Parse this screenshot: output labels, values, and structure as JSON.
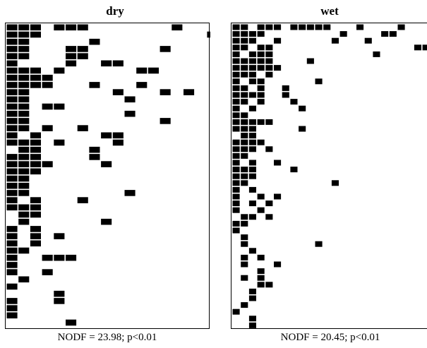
{
  "panels": [
    {
      "id": "dry",
      "title": "dry",
      "stat": "NODF = 23.98; p<0.01",
      "cells": [
        [
          0,
          0
        ],
        [
          1,
          0
        ],
        [
          2,
          0
        ],
        [
          4,
          0
        ],
        [
          5,
          0
        ],
        [
          6,
          0
        ],
        [
          14,
          0
        ],
        [
          0,
          1
        ],
        [
          1,
          1
        ],
        [
          2,
          1
        ],
        [
          17,
          1
        ],
        [
          0,
          2
        ],
        [
          1,
          2
        ],
        [
          7,
          2
        ],
        [
          0,
          3
        ],
        [
          1,
          3
        ],
        [
          5,
          3
        ],
        [
          6,
          3
        ],
        [
          13,
          3
        ],
        [
          0,
          4
        ],
        [
          1,
          4
        ],
        [
          5,
          4
        ],
        [
          6,
          4
        ],
        [
          0,
          5
        ],
        [
          5,
          5
        ],
        [
          8,
          5
        ],
        [
          9,
          5
        ],
        [
          0,
          6
        ],
        [
          1,
          6
        ],
        [
          2,
          6
        ],
        [
          4,
          6
        ],
        [
          11,
          6
        ],
        [
          12,
          6
        ],
        [
          0,
          7
        ],
        [
          1,
          7
        ],
        [
          2,
          7
        ],
        [
          3,
          7
        ],
        [
          0,
          8
        ],
        [
          1,
          8
        ],
        [
          2,
          8
        ],
        [
          3,
          8
        ],
        [
          7,
          8
        ],
        [
          11,
          8
        ],
        [
          0,
          9
        ],
        [
          1,
          9
        ],
        [
          9,
          9
        ],
        [
          13,
          9
        ],
        [
          15,
          9
        ],
        [
          0,
          10
        ],
        [
          1,
          10
        ],
        [
          10,
          10
        ],
        [
          0,
          11
        ],
        [
          1,
          11
        ],
        [
          3,
          11
        ],
        [
          4,
          11
        ],
        [
          0,
          12
        ],
        [
          1,
          12
        ],
        [
          10,
          12
        ],
        [
          0,
          13
        ],
        [
          1,
          13
        ],
        [
          13,
          13
        ],
        [
          0,
          14
        ],
        [
          1,
          14
        ],
        [
          3,
          14
        ],
        [
          6,
          14
        ],
        [
          0,
          15
        ],
        [
          2,
          15
        ],
        [
          8,
          15
        ],
        [
          9,
          15
        ],
        [
          0,
          16
        ],
        [
          1,
          16
        ],
        [
          2,
          16
        ],
        [
          4,
          16
        ],
        [
          9,
          16
        ],
        [
          1,
          17
        ],
        [
          2,
          17
        ],
        [
          7,
          17
        ],
        [
          0,
          18
        ],
        [
          1,
          18
        ],
        [
          2,
          18
        ],
        [
          7,
          18
        ],
        [
          0,
          19
        ],
        [
          1,
          19
        ],
        [
          2,
          19
        ],
        [
          3,
          19
        ],
        [
          8,
          19
        ],
        [
          0,
          20
        ],
        [
          1,
          20
        ],
        [
          2,
          20
        ],
        [
          0,
          21
        ],
        [
          1,
          21
        ],
        [
          0,
          22
        ],
        [
          1,
          22
        ],
        [
          0,
          23
        ],
        [
          1,
          23
        ],
        [
          10,
          23
        ],
        [
          0,
          24
        ],
        [
          2,
          24
        ],
        [
          6,
          24
        ],
        [
          0,
          25
        ],
        [
          1,
          25
        ],
        [
          2,
          25
        ],
        [
          1,
          26
        ],
        [
          2,
          26
        ],
        [
          1,
          27
        ],
        [
          8,
          27
        ],
        [
          0,
          28
        ],
        [
          2,
          28
        ],
        [
          0,
          29
        ],
        [
          2,
          29
        ],
        [
          4,
          29
        ],
        [
          0,
          30
        ],
        [
          2,
          30
        ],
        [
          0,
          31
        ],
        [
          1,
          31
        ],
        [
          0,
          32
        ],
        [
          3,
          32
        ],
        [
          4,
          32
        ],
        [
          5,
          32
        ],
        [
          0,
          33
        ],
        [
          0,
          34
        ],
        [
          3,
          34
        ],
        [
          1,
          35
        ],
        [
          0,
          36
        ],
        [
          4,
          37
        ],
        [
          0,
          38
        ],
        [
          4,
          38
        ],
        [
          0,
          39
        ],
        [
          0,
          40
        ],
        [
          5,
          41
        ]
      ]
    },
    {
      "id": "wet",
      "title": "wet",
      "stat": "NODF = 20.45; p<0.01",
      "cells": [
        [
          0,
          0
        ],
        [
          1,
          0
        ],
        [
          3,
          0
        ],
        [
          4,
          0
        ],
        [
          5,
          0
        ],
        [
          7,
          0
        ],
        [
          8,
          0
        ],
        [
          9,
          0
        ],
        [
          10,
          0
        ],
        [
          11,
          0
        ],
        [
          15,
          0
        ],
        [
          20,
          0
        ],
        [
          0,
          1
        ],
        [
          1,
          1
        ],
        [
          2,
          1
        ],
        [
          3,
          1
        ],
        [
          13,
          1
        ],
        [
          18,
          1
        ],
        [
          19,
          1
        ],
        [
          0,
          2
        ],
        [
          1,
          2
        ],
        [
          2,
          2
        ],
        [
          5,
          2
        ],
        [
          12,
          2
        ],
        [
          16,
          2
        ],
        [
          0,
          3
        ],
        [
          1,
          3
        ],
        [
          3,
          3
        ],
        [
          4,
          3
        ],
        [
          22,
          3
        ],
        [
          23,
          3
        ],
        [
          0,
          4
        ],
        [
          2,
          4
        ],
        [
          3,
          4
        ],
        [
          4,
          4
        ],
        [
          17,
          4
        ],
        [
          0,
          5
        ],
        [
          1,
          5
        ],
        [
          2,
          5
        ],
        [
          3,
          5
        ],
        [
          4,
          5
        ],
        [
          9,
          5
        ],
        [
          0,
          6
        ],
        [
          1,
          6
        ],
        [
          2,
          6
        ],
        [
          3,
          6
        ],
        [
          4,
          6
        ],
        [
          5,
          6
        ],
        [
          0,
          7
        ],
        [
          1,
          7
        ],
        [
          2,
          7
        ],
        [
          4,
          7
        ],
        [
          0,
          8
        ],
        [
          2,
          8
        ],
        [
          3,
          8
        ],
        [
          10,
          8
        ],
        [
          0,
          9
        ],
        [
          1,
          9
        ],
        [
          3,
          9
        ],
        [
          6,
          9
        ],
        [
          0,
          10
        ],
        [
          1,
          10
        ],
        [
          2,
          10
        ],
        [
          3,
          10
        ],
        [
          6,
          10
        ],
        [
          0,
          11
        ],
        [
          1,
          11
        ],
        [
          3,
          11
        ],
        [
          7,
          11
        ],
        [
          0,
          12
        ],
        [
          2,
          12
        ],
        [
          8,
          12
        ],
        [
          0,
          13
        ],
        [
          1,
          13
        ],
        [
          0,
          14
        ],
        [
          1,
          14
        ],
        [
          2,
          14
        ],
        [
          3,
          14
        ],
        [
          4,
          14
        ],
        [
          0,
          15
        ],
        [
          1,
          15
        ],
        [
          2,
          15
        ],
        [
          8,
          15
        ],
        [
          1,
          16
        ],
        [
          2,
          16
        ],
        [
          0,
          17
        ],
        [
          1,
          17
        ],
        [
          2,
          17
        ],
        [
          3,
          17
        ],
        [
          0,
          18
        ],
        [
          1,
          18
        ],
        [
          2,
          18
        ],
        [
          4,
          18
        ],
        [
          0,
          19
        ],
        [
          1,
          19
        ],
        [
          0,
          20
        ],
        [
          2,
          20
        ],
        [
          5,
          20
        ],
        [
          0,
          21
        ],
        [
          1,
          21
        ],
        [
          2,
          21
        ],
        [
          7,
          21
        ],
        [
          0,
          22
        ],
        [
          1,
          22
        ],
        [
          2,
          22
        ],
        [
          0,
          23
        ],
        [
          1,
          23
        ],
        [
          12,
          23
        ],
        [
          0,
          24
        ],
        [
          2,
          24
        ],
        [
          0,
          25
        ],
        [
          3,
          25
        ],
        [
          5,
          25
        ],
        [
          0,
          26
        ],
        [
          2,
          26
        ],
        [
          4,
          26
        ],
        [
          0,
          27
        ],
        [
          3,
          27
        ],
        [
          1,
          28
        ],
        [
          2,
          28
        ],
        [
          4,
          28
        ],
        [
          0,
          29
        ],
        [
          1,
          29
        ],
        [
          0,
          30
        ],
        [
          1,
          31
        ],
        [
          1,
          32
        ],
        [
          10,
          32
        ],
        [
          2,
          33
        ],
        [
          1,
          34
        ],
        [
          3,
          34
        ],
        [
          1,
          35
        ],
        [
          5,
          35
        ],
        [
          3,
          36
        ],
        [
          1,
          37
        ],
        [
          3,
          37
        ],
        [
          3,
          38
        ],
        [
          4,
          38
        ],
        [
          2,
          39
        ],
        [
          2,
          40
        ],
        [
          1,
          41
        ],
        [
          0,
          42
        ],
        [
          2,
          43
        ],
        [
          2,
          44
        ]
      ]
    }
  ]
}
